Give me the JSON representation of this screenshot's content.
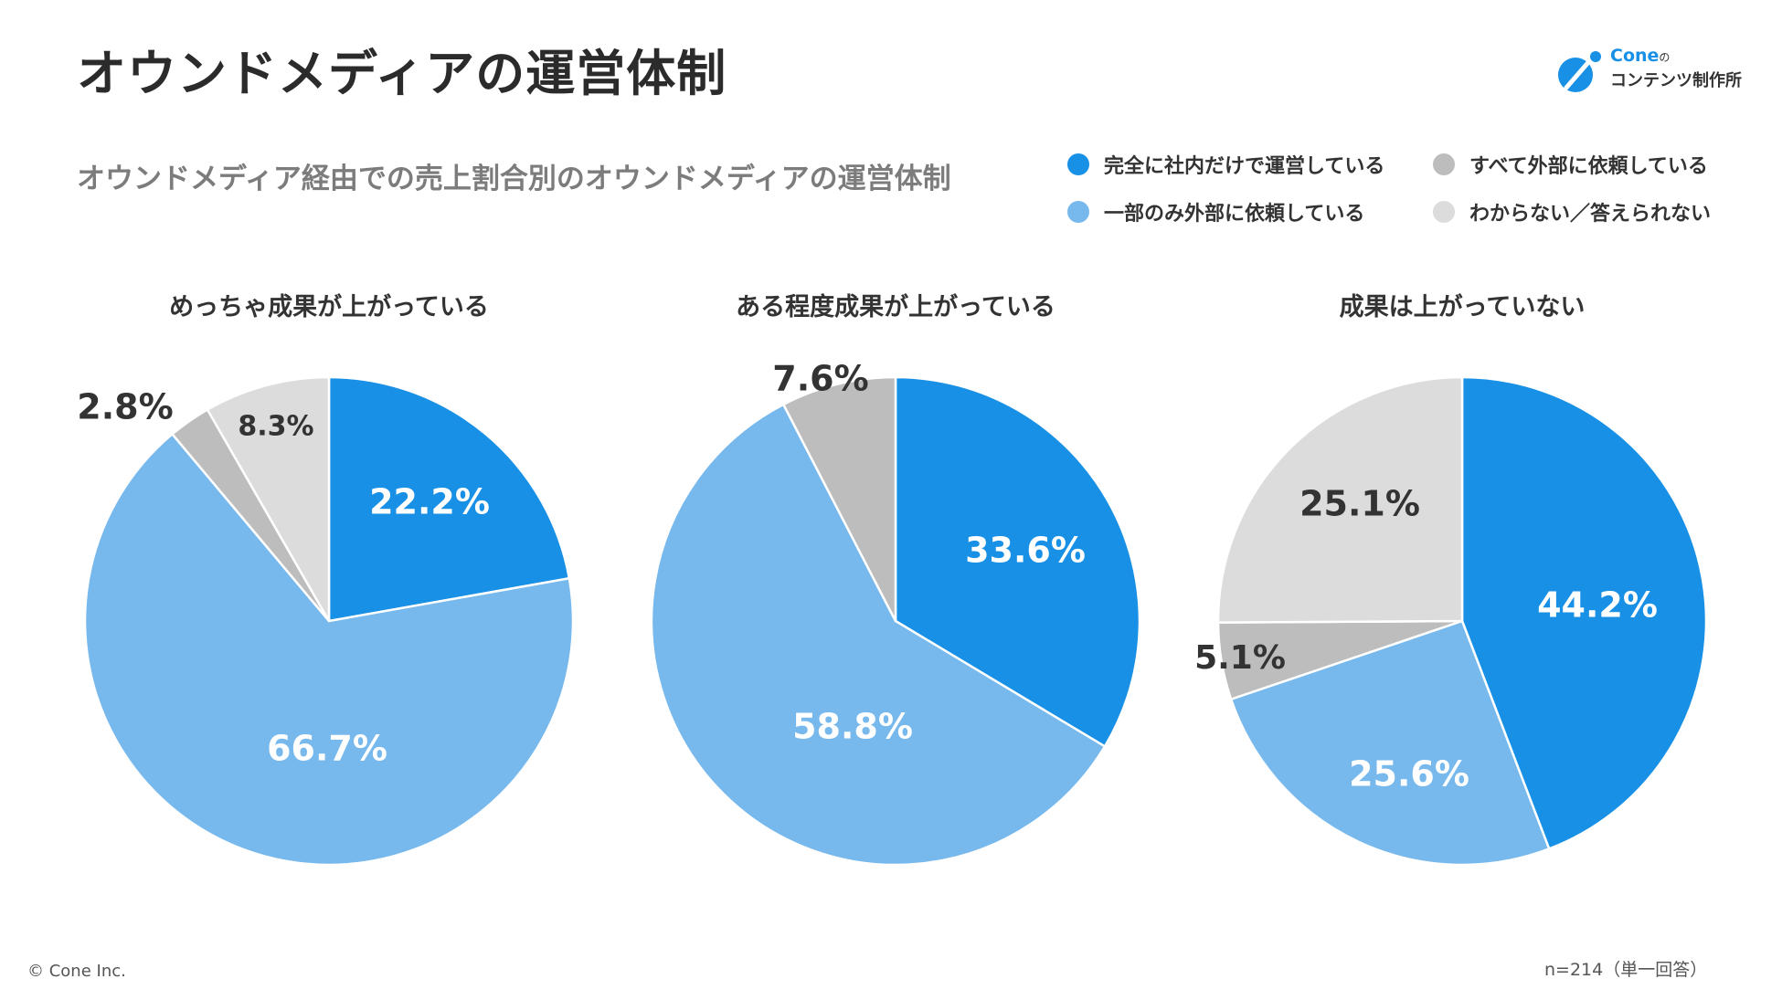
{
  "page": {
    "title": "オウンドメディアの運営体制",
    "subtitle": "オウンドメディア経由での売上割合別のオウンドメディアの運営体制",
    "copyright": "© Cone Inc.",
    "sample_note": "n=214（単一回答）"
  },
  "logo": {
    "brand": "Cone",
    "particle": "の",
    "subtitle": "コンテンツ制作所",
    "icon": "cone-logo-icon"
  },
  "legend": [
    {
      "label": "完全に社内だけで運営している",
      "color": "#1890e6"
    },
    {
      "label": "すべて外部に依頼している",
      "color": "#bdbdbd"
    },
    {
      "label": "一部のみ外部に依頼している",
      "color": "#77b8ed"
    },
    {
      "label": "わからない／答えられない",
      "color": "#dcdcdc"
    }
  ],
  "chart_data": [
    {
      "type": "pie",
      "title": "めっちゃ成果が上がっている",
      "slices": [
        {
          "label": "完全に社内だけで運営している",
          "value": 22.2,
          "text": "22.2%",
          "color": "#1890e6"
        },
        {
          "label": "一部のみ外部に依頼している",
          "value": 66.7,
          "text": "66.7%",
          "color": "#77b8ed"
        },
        {
          "label": "すべて外部に依頼している",
          "value": 2.8,
          "text": "2.8%",
          "color": "#bdbdbd"
        },
        {
          "label": "わからない／答えられない",
          "value": 8.3,
          "text": "8.3%",
          "color": "#dcdcdc"
        }
      ]
    },
    {
      "type": "pie",
      "title": "ある程度成果が上がっている",
      "slices": [
        {
          "label": "完全に社内だけで運営している",
          "value": 33.6,
          "text": "33.6%",
          "color": "#1890e6"
        },
        {
          "label": "一部のみ外部に依頼している",
          "value": 58.8,
          "text": "58.8%",
          "color": "#77b8ed"
        },
        {
          "label": "すべて外部に依頼している",
          "value": 7.6,
          "text": "7.6%",
          "color": "#bdbdbd"
        }
      ]
    },
    {
      "type": "pie",
      "title": "成果は上がっていない",
      "slices": [
        {
          "label": "完全に社内だけで運営している",
          "value": 44.2,
          "text": "44.2%",
          "color": "#1890e6"
        },
        {
          "label": "一部のみ外部に依頼している",
          "value": 25.6,
          "text": "25.6%",
          "color": "#77b8ed"
        },
        {
          "label": "すべて外部に依頼している",
          "value": 5.1,
          "text": "5.1%",
          "color": "#bdbdbd"
        },
        {
          "label": "わからない／答えられない",
          "value": 25.1,
          "text": "25.1%",
          "color": "#dcdcdc"
        }
      ]
    }
  ]
}
